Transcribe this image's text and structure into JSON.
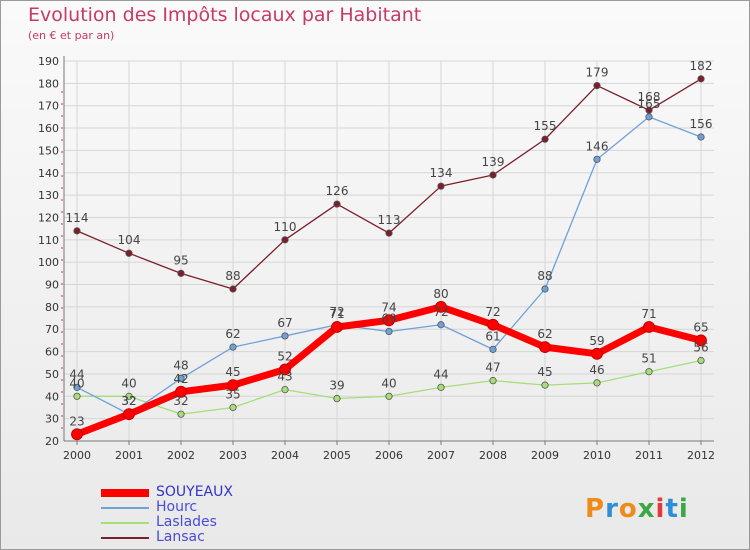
{
  "chart_data": {
    "type": "line",
    "title": "Evolution des Impôts locaux par Habitant",
    "subtitle": "(en € et par an)",
    "xlabel": "",
    "ylabel": "",
    "ylim": [
      20,
      190
    ],
    "ytick_step": 10,
    "grid": true,
    "legend_position": "bottom-left",
    "categories": [
      "2000",
      "2001",
      "2002",
      "2003",
      "2004",
      "2005",
      "2006",
      "2007",
      "2008",
      "2009",
      "2010",
      "2011",
      "2012"
    ],
    "series": [
      {
        "name": "SOUYEAUX",
        "color": "#ff0000",
        "values": [
          23,
          32,
          42,
          45,
          52,
          71,
          74,
          80,
          72,
          62,
          59,
          71,
          65
        ]
      },
      {
        "name": "Hourc",
        "color": "#6fa1d9",
        "values": [
          44,
          32,
          48,
          62,
          67,
          72,
          69,
          72,
          61,
          88,
          146,
          165,
          156
        ]
      },
      {
        "name": "Laslades",
        "color": "#a6de78",
        "values": [
          40,
          40,
          32,
          35,
          43,
          39,
          40,
          44,
          47,
          45,
          46,
          51,
          56
        ]
      },
      {
        "name": "Lansac",
        "color": "#7a1f2b",
        "values": [
          114,
          104,
          95,
          88,
          110,
          126,
          113,
          134,
          139,
          155,
          179,
          168,
          182
        ]
      }
    ]
  },
  "brand": {
    "logo_text": "Proxiti"
  },
  "colors": {
    "title": "#c8396a",
    "grid": "#d6d6d6",
    "axis": "#777777",
    "zero_dash": "#e07070"
  }
}
